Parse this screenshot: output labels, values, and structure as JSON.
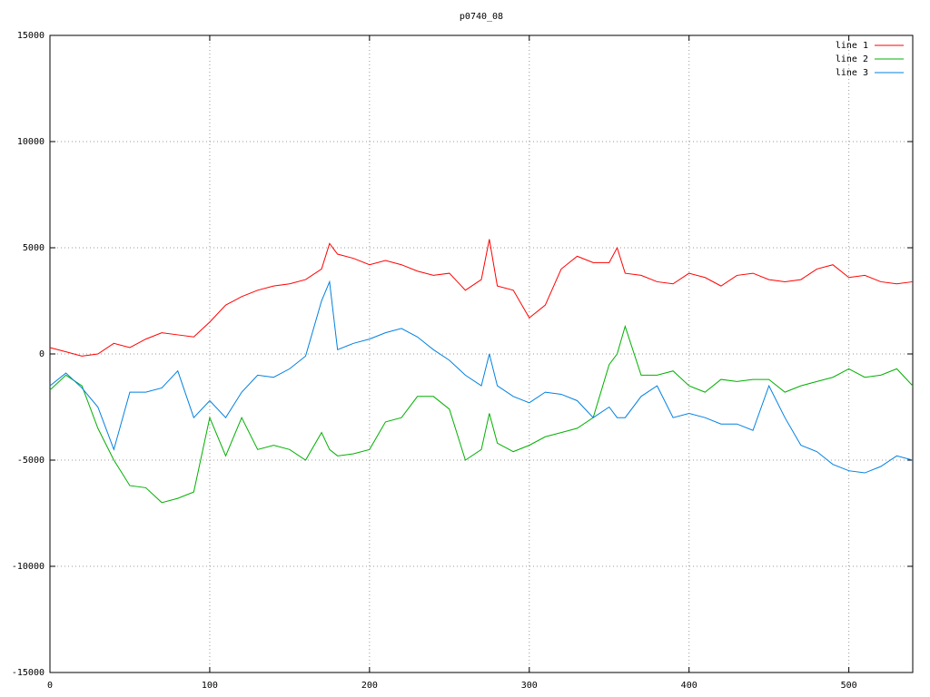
{
  "chart_data": {
    "type": "line",
    "title": "p0740_08",
    "x": [
      0,
      10,
      20,
      30,
      40,
      50,
      60,
      70,
      80,
      90,
      100,
      110,
      120,
      130,
      140,
      150,
      160,
      170,
      175,
      180,
      190,
      200,
      210,
      220,
      230,
      240,
      250,
      260,
      270,
      275,
      280,
      290,
      300,
      310,
      320,
      330,
      340,
      350,
      355,
      360,
      370,
      380,
      390,
      400,
      410,
      420,
      430,
      440,
      450,
      460,
      470,
      480,
      490,
      500,
      510,
      520,
      530,
      540
    ],
    "series": [
      {
        "name": "line 1",
        "color": "#ff0000",
        "values": [
          300,
          100,
          -100,
          0,
          500,
          300,
          700,
          1000,
          900,
          800,
          1500,
          2300,
          2700,
          3000,
          3200,
          3300,
          3500,
          4000,
          5200,
          4700,
          4500,
          4200,
          4400,
          4200,
          3900,
          3700,
          3800,
          3000,
          3500,
          5400,
          3200,
          3000,
          1700,
          2300,
          4000,
          4600,
          4300,
          4300,
          5000,
          3800,
          3700,
          3400,
          3300,
          3800,
          3600,
          3200,
          3700,
          3800,
          3500,
          3400,
          3500,
          4000,
          4200,
          3600,
          3700,
          3400,
          3300,
          3400
        ]
      },
      {
        "name": "line 2",
        "color": "#00b000",
        "values": [
          -1700,
          -1000,
          -1500,
          -3500,
          -5000,
          -6200,
          -6300,
          -7000,
          -6800,
          -6500,
          -3000,
          -4800,
          -3000,
          -4500,
          -4300,
          -4500,
          -5000,
          -3700,
          -4500,
          -4800,
          -4700,
          -4500,
          -3200,
          -3000,
          -2000,
          -2000,
          -2600,
          -5000,
          -4500,
          -2800,
          -4200,
          -4600,
          -4300,
          -3900,
          -3700,
          -3500,
          -3000,
          -500,
          0,
          1300,
          -1000,
          -1000,
          -800,
          -1500,
          -1800,
          -1200,
          -1300,
          -1200,
          -1200,
          -1800,
          -1500,
          -1300,
          -1100,
          -700,
          -1100,
          -1000,
          -700,
          -1500
        ]
      },
      {
        "name": "line 3",
        "color": "#0080e0",
        "values": [
          -1500,
          -900,
          -1600,
          -2500,
          -4500,
          -1800,
          -1800,
          -1600,
          -800,
          -3000,
          -2200,
          -3000,
          -1800,
          -1000,
          -1100,
          -700,
          -100,
          2500,
          3400,
          200,
          500,
          700,
          1000,
          1200,
          800,
          200,
          -300,
          -1000,
          -1500,
          0,
          -1500,
          -2000,
          -2300,
          -1800,
          -1900,
          -2200,
          -3000,
          -2500,
          -3000,
          -3000,
          -2000,
          -1500,
          -3000,
          -2800,
          -3000,
          -3300,
          -3300,
          -3600,
          -1500,
          -3000,
          -4300,
          -4600,
          -5200,
          -5500,
          -5600,
          -5300,
          -4800,
          -5000
        ]
      }
    ],
    "xlim": [
      0,
      540
    ],
    "xticks": [
      0,
      100,
      200,
      300,
      400,
      500
    ],
    "ylim": [
      -15000,
      15000
    ],
    "yticks": [
      -15000,
      -10000,
      -5000,
      0,
      5000,
      10000,
      15000
    ],
    "grid": true,
    "legend": "top-right"
  }
}
